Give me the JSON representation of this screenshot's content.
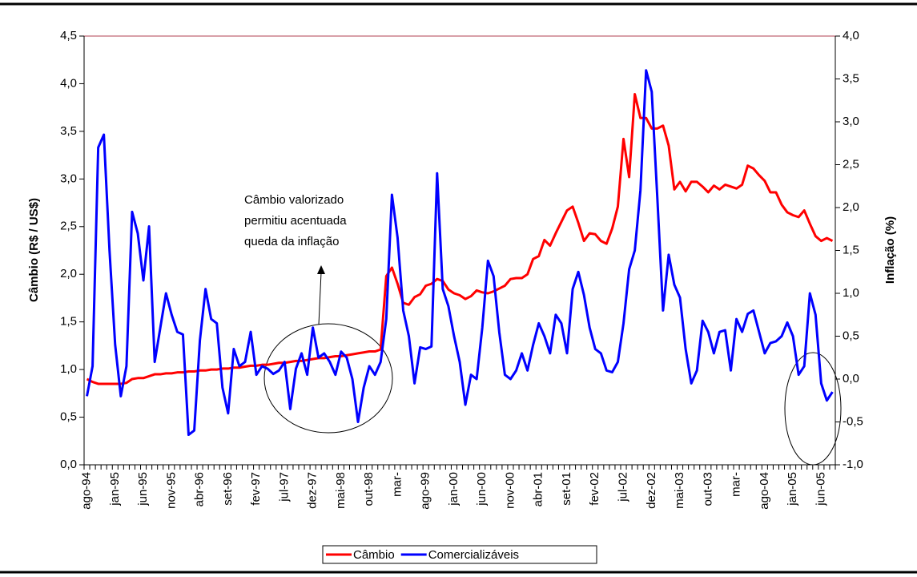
{
  "chart_data": {
    "type": "line",
    "categories": [
      "ago-94",
      null,
      null,
      null,
      null,
      "jan-95",
      null,
      null,
      null,
      null,
      "jun-95",
      null,
      null,
      null,
      null,
      "nov-95",
      null,
      null,
      null,
      null,
      "abr-96",
      null,
      null,
      null,
      null,
      "set-96",
      null,
      null,
      null,
      null,
      "fev-97",
      null,
      null,
      null,
      null,
      "jul-97",
      null,
      null,
      null,
      null,
      "dez-97",
      null,
      null,
      null,
      null,
      "mai-98",
      null,
      null,
      null,
      null,
      "out-98",
      null,
      null,
      null,
      null,
      "mar-",
      null,
      null,
      null,
      null,
      "ago-99",
      null,
      null,
      null,
      null,
      "jan-00",
      null,
      null,
      null,
      null,
      "jun-00",
      null,
      null,
      null,
      null,
      "nov-00",
      null,
      null,
      null,
      null,
      "abr-01",
      null,
      null,
      null,
      null,
      "set-01",
      null,
      null,
      null,
      null,
      "fev-02",
      null,
      null,
      null,
      null,
      "jul-02",
      null,
      null,
      null,
      null,
      "dez-02",
      null,
      null,
      null,
      null,
      "mai-03",
      null,
      null,
      null,
      null,
      "out-03",
      null,
      null,
      null,
      null,
      "mar-",
      null,
      null,
      null,
      null,
      "ago-04",
      null,
      null,
      null,
      null,
      "jan-05",
      null,
      null,
      null,
      null,
      "jun-05",
      null,
      null
    ],
    "series": [
      {
        "name": "Câmbio",
        "color": "#ff0000",
        "axis": "y",
        "values": [
          0.9,
          0.87,
          0.85,
          0.85,
          0.85,
          0.85,
          0.85,
          0.86,
          0.9,
          0.91,
          0.91,
          0.93,
          0.95,
          0.95,
          0.96,
          0.96,
          0.97,
          0.97,
          0.98,
          0.98,
          0.99,
          0.99,
          1.0,
          1.0,
          1.01,
          1.01,
          1.02,
          1.02,
          1.03,
          1.04,
          1.04,
          1.05,
          1.05,
          1.06,
          1.07,
          1.07,
          1.08,
          1.09,
          1.09,
          1.1,
          1.11,
          1.12,
          1.12,
          1.13,
          1.14,
          1.14,
          1.15,
          1.16,
          1.17,
          1.18,
          1.19,
          1.19,
          1.21,
          1.98,
          2.07,
          1.9,
          1.7,
          1.68,
          1.76,
          1.79,
          1.88,
          1.9,
          1.95,
          1.93,
          1.84,
          1.8,
          1.78,
          1.74,
          1.77,
          1.83,
          1.81,
          1.8,
          1.82,
          1.85,
          1.88,
          1.95,
          1.96,
          1.96,
          2.0,
          2.16,
          2.19,
          2.36,
          2.3,
          2.43,
          2.55,
          2.67,
          2.71,
          2.54,
          2.35,
          2.43,
          2.42,
          2.35,
          2.32,
          2.48,
          2.71,
          3.42,
          3.02,
          3.89,
          3.64,
          3.64,
          3.53,
          3.53,
          3.56,
          3.35,
          2.89,
          2.97,
          2.87,
          2.97,
          2.97,
          2.92,
          2.86,
          2.93,
          2.89,
          2.94,
          2.92,
          2.9,
          2.94,
          3.14,
          3.11,
          3.04,
          2.98,
          2.86,
          2.86,
          2.73,
          2.65,
          2.62,
          2.6,
          2.67,
          2.53,
          2.4,
          2.35,
          2.38,
          2.35
        ]
      },
      {
        "name": "Comercializáveis",
        "color": "#0000ff",
        "axis": "y2",
        "values": [
          -0.2,
          0.15,
          2.7,
          2.85,
          1.5,
          0.4,
          -0.2,
          0.15,
          1.95,
          1.7,
          1.15,
          1.78,
          0.2,
          0.6,
          1.0,
          0.75,
          0.55,
          0.52,
          -0.65,
          -0.6,
          0.45,
          1.05,
          0.7,
          0.65,
          -0.1,
          -0.4,
          0.35,
          0.15,
          0.2,
          0.55,
          0.05,
          0.15,
          0.12,
          0.06,
          0.1,
          0.2,
          -0.35,
          0.12,
          0.3,
          0.05,
          0.6,
          0.25,
          0.3,
          0.2,
          0.05,
          0.32,
          0.25,
          0.0,
          -0.5,
          -0.1,
          0.15,
          0.05,
          0.2,
          0.7,
          2.15,
          1.65,
          0.8,
          0.5,
          -0.05,
          0.37,
          0.35,
          0.38,
          2.4,
          1.05,
          0.85,
          0.5,
          0.2,
          -0.3,
          0.05,
          0.0,
          0.6,
          1.38,
          1.2,
          0.55,
          0.05,
          0.0,
          0.1,
          0.3,
          0.1,
          0.4,
          0.65,
          0.5,
          0.3,
          0.75,
          0.65,
          0.3,
          1.05,
          1.25,
          0.98,
          0.6,
          0.35,
          0.3,
          0.1,
          0.08,
          0.2,
          0.65,
          1.28,
          1.5,
          2.2,
          3.6,
          3.35,
          2.1,
          0.8,
          1.45,
          1.1,
          0.95,
          0.35,
          -0.05,
          0.1,
          0.68,
          0.55,
          0.3,
          0.55,
          0.57,
          0.1,
          0.7,
          0.55,
          0.76,
          0.8,
          0.55,
          0.3,
          0.42,
          0.44,
          0.5,
          0.66,
          0.5,
          0.05,
          0.15,
          1.0,
          0.75,
          -0.05,
          -0.25,
          -0.15
        ]
      }
    ],
    "ylabel": "Câmbio (R$ / US$)",
    "y2label": "Inflação (%)",
    "ylim": [
      0,
      4.5
    ],
    "yticks": [
      {
        "value": 0,
        "label": "0,0"
      },
      {
        "value": 0.5,
        "label": "0,5"
      },
      {
        "value": 1,
        "label": "1,0"
      },
      {
        "value": 1.5,
        "label": "1,5"
      },
      {
        "value": 2,
        "label": "2,0"
      },
      {
        "value": 2.5,
        "label": "2,5"
      },
      {
        "value": 3,
        "label": "3,0"
      },
      {
        "value": 3.5,
        "label": "3,5"
      },
      {
        "value": 4,
        "label": "4,0"
      },
      {
        "value": 4.5,
        "label": "4,5"
      }
    ],
    "y2lim": [
      -1,
      4
    ],
    "y2ticks": [
      {
        "value": -1,
        "label": "-1,0"
      },
      {
        "value": -0.5,
        "label": "-0,5"
      },
      {
        "value": 0,
        "label": "0,0"
      },
      {
        "value": 0.5,
        "label": "0,5"
      },
      {
        "value": 1,
        "label": "1,0"
      },
      {
        "value": 1.5,
        "label": "1,5"
      },
      {
        "value": 2,
        "label": "2,0"
      },
      {
        "value": 2.5,
        "label": "2,5"
      },
      {
        "value": 3,
        "label": "3,0"
      },
      {
        "value": 3.5,
        "label": "3,5"
      },
      {
        "value": 4,
        "label": "4,0"
      }
    ],
    "annotation": [
      "Câmbio valorizado",
      "permitiu acentuada",
      "queda da inflação"
    ]
  }
}
